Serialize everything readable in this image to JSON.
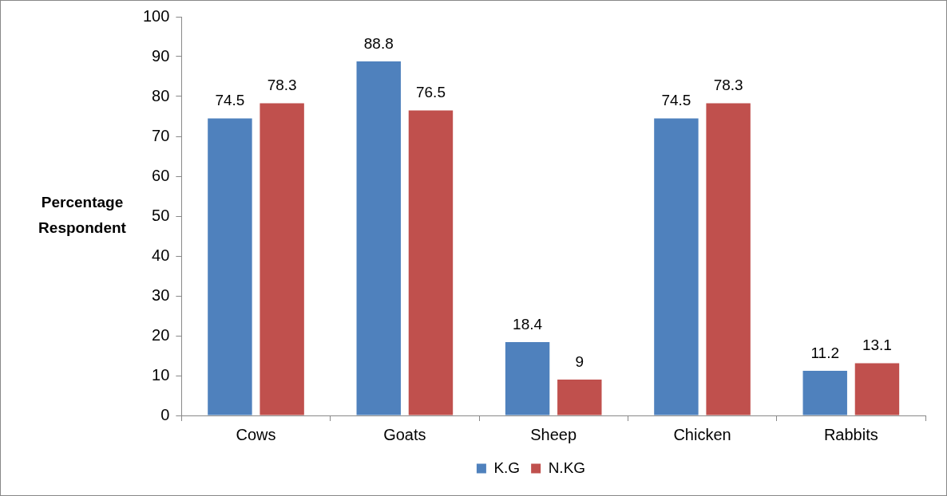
{
  "chart_data": {
    "type": "bar",
    "ylabel": "Percentage Respondent",
    "categories": [
      "Cows",
      "Goats",
      "Sheep",
      "Chicken",
      "Rabbits"
    ],
    "series": [
      {
        "name": "K.G",
        "color": "#4f81bd",
        "values": [
          74.5,
          88.8,
          18.4,
          74.5,
          11.2
        ]
      },
      {
        "name": "N.KG",
        "color": "#c0504d",
        "values": [
          78.3,
          76.5,
          9,
          78.3,
          13.1
        ]
      }
    ],
    "ylim": [
      0,
      100
    ],
    "yticks": [
      0,
      10,
      20,
      30,
      40,
      50,
      60,
      70,
      80,
      90,
      100
    ],
    "grid": false,
    "legend": "bottom",
    "data_labels": true
  }
}
